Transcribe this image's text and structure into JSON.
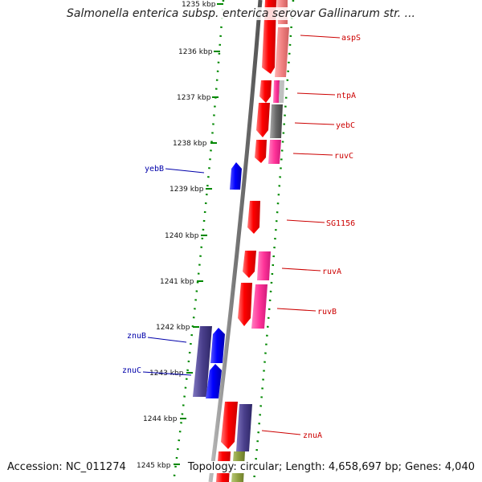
{
  "title": "Salmonella enterica subsp. enterica serovar Gallinarum str. ...",
  "footer": {
    "accession": "Accession: NC_011274",
    "topology": "Topology: circular; Length: 4,658,697 bp; Genes: 4,040"
  },
  "ticks": [
    {
      "kbp": 1235,
      "label": "1235 kbp"
    },
    {
      "kbp": 1236,
      "label": "1236 kbp"
    },
    {
      "kbp": 1237,
      "label": "1237 kbp"
    },
    {
      "kbp": 1238,
      "label": "1238 kbp"
    },
    {
      "kbp": 1239,
      "label": "1239 kbp"
    },
    {
      "kbp": 1240,
      "label": "1240 kbp"
    },
    {
      "kbp": 1241,
      "label": "1241 kbp"
    },
    {
      "kbp": 1242,
      "label": "1242 kbp"
    },
    {
      "kbp": 1243,
      "label": "1243 kbp"
    },
    {
      "kbp": 1244,
      "label": "1244 kbp"
    },
    {
      "kbp": 1245,
      "label": "1245 kbp"
    }
  ],
  "labels": [
    {
      "name": "aspS",
      "strand": "forward"
    },
    {
      "name": "ntpA",
      "strand": "forward"
    },
    {
      "name": "yebC",
      "strand": "forward"
    },
    {
      "name": "ruvC",
      "strand": "forward"
    },
    {
      "name": "SG1156",
      "strand": "forward"
    },
    {
      "name": "ruvA",
      "strand": "forward"
    },
    {
      "name": "ruvB",
      "strand": "forward"
    },
    {
      "name": "znuA",
      "strand": "forward"
    },
    {
      "name": "yebB",
      "strand": "reverse"
    },
    {
      "name": "znuB",
      "strand": "reverse"
    },
    {
      "name": "znuC",
      "strand": "reverse"
    }
  ],
  "colors": {
    "forward_gene": "#ff0000",
    "reverse_gene": "#0000ff",
    "forward_label": "#cc0000",
    "reverse_label": "#0000aa",
    "pink_feature": "#ff3399",
    "purple_feature": "#4a3f8c",
    "grey_feature": "#777777",
    "salmon_feature": "#f08080",
    "olive_feature": "#8fa040",
    "backbone": "#888888",
    "tick": "#008800"
  }
}
